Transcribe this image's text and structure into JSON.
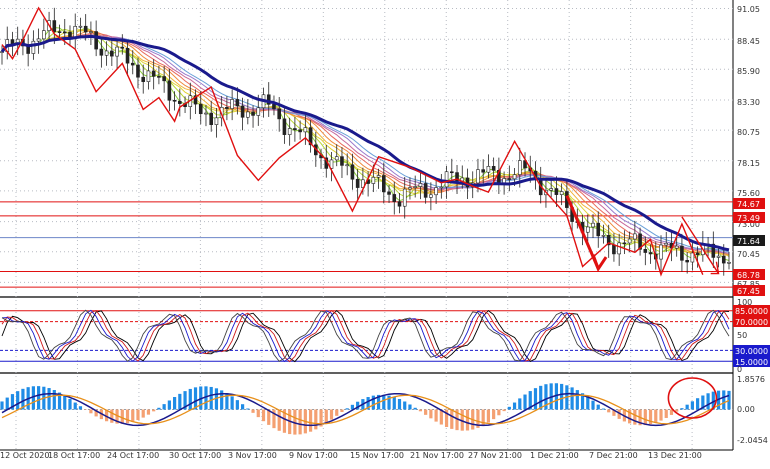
{
  "price_axis": {
    "ticks": [
      "91.05",
      "88.45",
      "85.90",
      "83.30",
      "80.75",
      "78.15",
      "75.60",
      "73.00",
      "70.45",
      "67.85"
    ],
    "tick_values": [
      91.05,
      88.45,
      85.9,
      83.3,
      80.75,
      78.15,
      75.6,
      73.0,
      70.45,
      67.85
    ],
    "range": [
      66.7,
      91.6
    ]
  },
  "price_lines": [
    {
      "label": "74.67",
      "value": 74.67,
      "kind": "level"
    },
    {
      "label": "73.49",
      "value": 73.49,
      "kind": "level"
    },
    {
      "label": "71.64",
      "value": 71.64,
      "kind": "current"
    },
    {
      "label": "68.78",
      "value": 68.78,
      "kind": "level"
    },
    {
      "label": "67.45",
      "value": 67.45,
      "kind": "level"
    }
  ],
  "oscillator": {
    "ticks": [
      "100",
      "50",
      "0"
    ],
    "levels": [
      {
        "label": "85.0000",
        "value": 85
      },
      {
        "label": "70.0000",
        "value": 70
      },
      {
        "label": "30.0000",
        "value": 30
      },
      {
        "label": "15.0000",
        "value": 15
      }
    ]
  },
  "macd": {
    "ticks": [
      "1.8576",
      "0.00",
      "-2.0454"
    ],
    "tick_values": [
      1.8576,
      0,
      -2.0454
    ]
  },
  "time_axis": {
    "labels": [
      "12 Oct 2020",
      "18 Oct 17:00",
      "24 Oct 17:00",
      "30 Oct 17:00",
      "3 Nov 17:00",
      "9 Nov 17:00",
      "15 Nov 17:00",
      "21 Nov 17:00",
      "27 Nov 21:00",
      "1 Dec 21:00",
      "7 Dec 21:00",
      "13 Dec 21:00"
    ]
  },
  "chart_data": {
    "type": "line",
    "title": "",
    "xlabel": "",
    "ylabel": "",
    "x": [
      "12 Oct 2020",
      "18 Oct 17:00",
      "24 Oct 17:00",
      "30 Oct 17:00",
      "3 Nov 17:00",
      "9 Nov 17:00",
      "15 Nov 17:00",
      "21 Nov 17:00",
      "27 Nov 21:00",
      "1 Dec 21:00",
      "7 Dec 21:00",
      "13 Dec 21:00"
    ],
    "ylim": [
      66.7,
      91.6
    ],
    "series": [
      {
        "values": [
          87.4,
          89.6,
          86.2,
          82.1,
          82.8,
          77.9,
          75.1,
          76.8,
          77.2,
          71.6,
          70.5,
          70.2
        ]
      }
    ],
    "zigzag": [
      [
        0,
        88.0
      ],
      [
        2,
        86.8
      ],
      [
        4,
        88.4
      ],
      [
        7,
        91.1
      ],
      [
        10,
        88.9
      ],
      [
        14,
        87.6
      ],
      [
        18,
        84.0
      ],
      [
        23,
        86.4
      ],
      [
        27,
        82.5
      ],
      [
        30,
        83.5
      ],
      [
        33,
        81.5
      ],
      [
        34,
        82.7
      ],
      [
        40,
        84.4
      ],
      [
        45,
        78.6
      ],
      [
        49,
        76.5
      ],
      [
        53,
        78.4
      ],
      [
        58,
        80.1
      ],
      [
        62,
        78.2
      ],
      [
        67,
        73.9
      ],
      [
        72,
        78.5
      ],
      [
        78,
        77.6
      ],
      [
        84,
        76.3
      ],
      [
        87,
        76.6
      ],
      [
        90,
        76.0
      ],
      [
        93,
        75.5
      ],
      [
        98,
        79.8
      ],
      [
        103,
        76.0
      ],
      [
        108,
        73.5
      ],
      [
        111,
        69.2
      ],
      [
        116,
        71.2
      ],
      [
        121,
        70.4
      ],
      [
        124,
        71.5
      ],
      [
        126,
        68.5
      ],
      [
        130,
        72.8
      ],
      [
        134,
        68.5
      ]
    ],
    "colors": {
      "ma": "#1a1a8c",
      "zigzag": "#e01010",
      "levels": "#e01010",
      "current": "#6d86c8",
      "up": "#1f8ce6",
      "down": "#f4a072"
    }
  }
}
